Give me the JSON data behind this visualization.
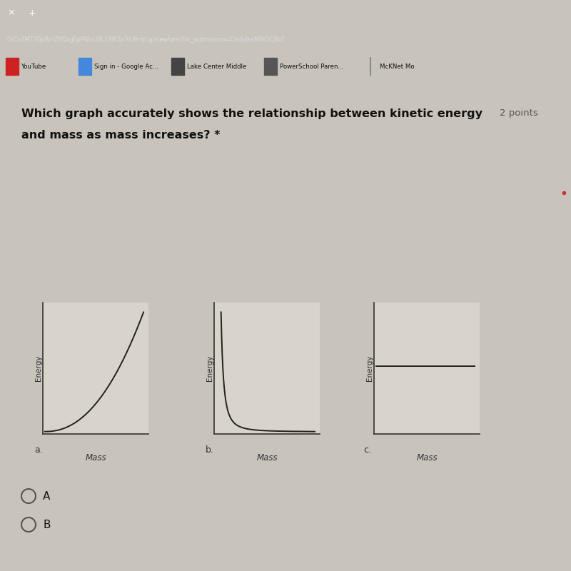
{
  "title_line1": "Which graph accurately shows the relationship between kinetic energy",
  "title_line2": "and mass as mass increases?",
  "points_text": "2 points",
  "overall_bg": "#c8c4bc",
  "content_bg": "#e8e5de",
  "graph_bg": "#d8d4cc",
  "tab_bar_bg": "#3a3a3a",
  "url_bar_bg": "#4a4a48",
  "url_text": "GrCvZMT3GpRmZKQojjEpPWvUBL23IR2pTsU9mjCg/viewform?hr_submission=ChcljdnsMRIQCJToT",
  "bookmarks_bg": "#c8c5be",
  "bm_items": [
    "YouTube",
    "Sign in - Google Ac...",
    "Lake Center Middle",
    "PowerSchool Paren...",
    "McKNet Mo"
  ],
  "bm_icon_colors": [
    "#cc2222",
    "#4488dd",
    "#444444",
    "#555555",
    "#888888"
  ],
  "graph_labels": [
    "a.",
    "b.",
    "c."
  ],
  "ylabel": "Energy",
  "xlabel": "Mass",
  "choice_A": "A",
  "choice_B": "B",
  "line_color": "#222222",
  "text_color": "#111111",
  "label_color": "#555555"
}
